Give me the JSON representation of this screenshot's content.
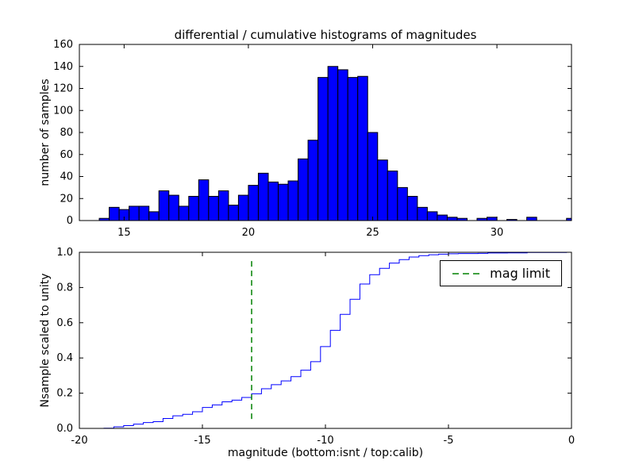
{
  "figure": {
    "title": "differential / cumulative histograms of magnitudes",
    "background": "#ffffff"
  },
  "colors": {
    "bar_fill": "#0000ff",
    "bar_edge": "#000000",
    "cumulative_line": "#0000ff",
    "mag_limit_line": "#008000",
    "axes": "#000000",
    "text": "#000000"
  },
  "chart_data": [
    {
      "type": "bar",
      "subplot": "top",
      "title": "differential / cumulative histograms of magnitudes",
      "ylabel": "number of samples",
      "xlim": [
        13.2,
        33.0
      ],
      "ylim": [
        0,
        160
      ],
      "xticks": [
        15,
        20,
        25,
        30
      ],
      "yticks": [
        0,
        20,
        40,
        60,
        80,
        100,
        120,
        140,
        160
      ],
      "bin_start": 14.0,
      "bin_width": 0.4,
      "values": [
        2,
        12,
        10,
        13,
        13,
        8,
        27,
        23,
        13,
        22,
        37,
        22,
        27,
        14,
        23,
        32,
        43,
        35,
        33,
        36,
        56,
        73,
        130,
        140,
        137,
        130,
        131,
        80,
        55,
        45,
        30,
        22,
        12,
        8,
        5,
        3,
        2,
        0,
        2,
        3,
        0,
        1,
        0,
        3,
        0,
        0,
        0,
        2
      ]
    },
    {
      "type": "line",
      "subplot": "bottom",
      "ylabel": "Nsample scaled to unity",
      "xlabel": "magnitude (bottom:isnt / top:calib)",
      "xlim": [
        -20,
        0
      ],
      "ylim": [
        0.0,
        1.0
      ],
      "xticks": [
        -20,
        -15,
        -10,
        -5,
        0
      ],
      "yticks": [
        0,
        0.2,
        0.4,
        0.6,
        0.8,
        1
      ],
      "ytick_labels": [
        "0.0",
        "0.2",
        "0.4",
        "0.6",
        "0.8",
        "1.0"
      ],
      "cumulative_of_values_x_offset": -33,
      "mag_limit_x": -13,
      "mag_limit_y_span": [
        0.05,
        0.95
      ],
      "legend": {
        "label": "mag limit",
        "position": "upper right"
      }
    }
  ]
}
